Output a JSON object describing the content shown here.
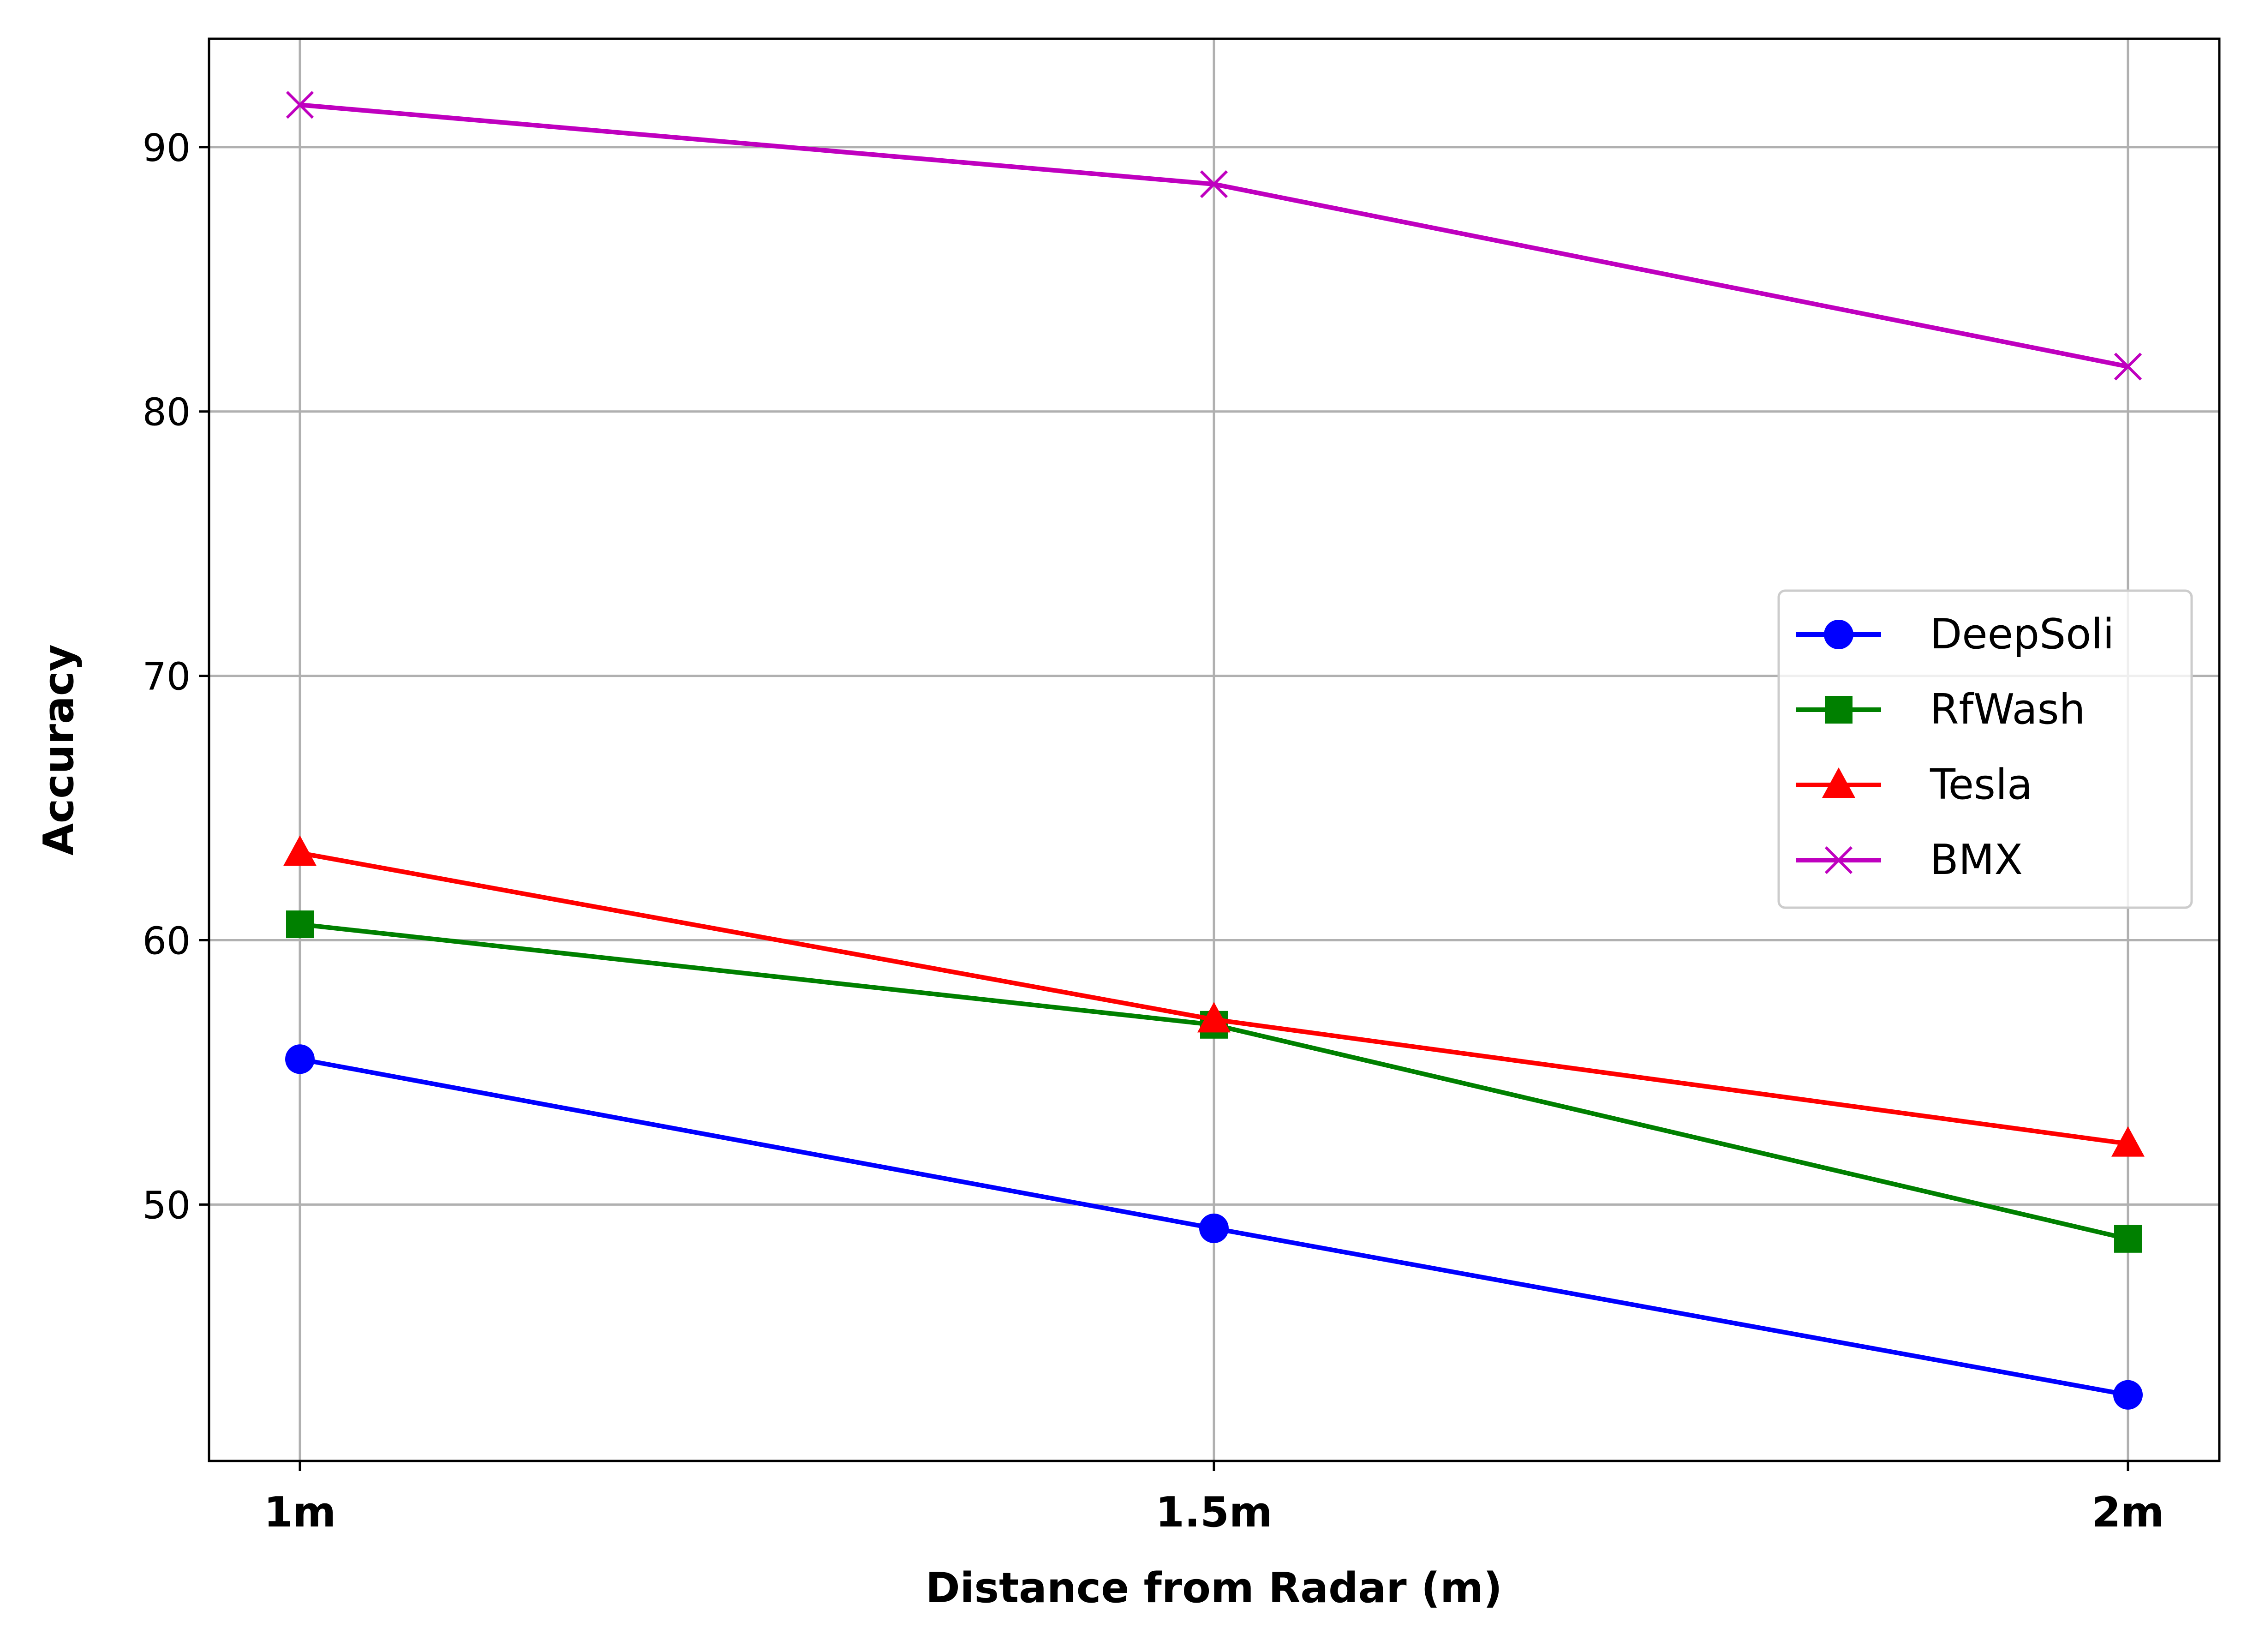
{
  "chart_data": {
    "type": "line",
    "title": "",
    "xlabel": "Distance from Radar (m)",
    "ylabel": "Accuracy",
    "categories": [
      "1m",
      "1.5m",
      "2m"
    ],
    "ylim": [
      40.3,
      94.1
    ],
    "yticks": [
      50,
      60,
      70,
      80,
      90
    ],
    "grid": true,
    "legend_position": "center-right",
    "series": [
      {
        "name": "DeepSoli",
        "values": [
          55.5,
          49.1,
          42.8
        ],
        "color": "#0000ff",
        "marker": "circle"
      },
      {
        "name": "RfWash",
        "values": [
          60.6,
          56.8,
          48.7
        ],
        "color": "#008000",
        "marker": "square"
      },
      {
        "name": "Tesla",
        "values": [
          63.3,
          57.0,
          52.3
        ],
        "color": "#ff0000",
        "marker": "triangle"
      },
      {
        "name": "BMX",
        "values": [
          91.6,
          88.6,
          81.7
        ],
        "color": "#bf00bf",
        "marker": "x"
      }
    ]
  }
}
